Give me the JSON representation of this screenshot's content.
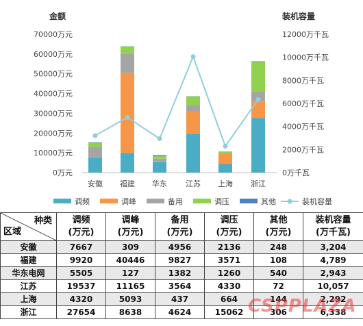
{
  "chart_data": {
    "type": "bar",
    "subtype": "stacked-bar-with-line",
    "left_axis_title": "金额",
    "right_axis_title": "装机容量",
    "left_ticks": [
      "0万元",
      "10000万元",
      "20000万元",
      "30000万元",
      "40000万元",
      "50000万元",
      "60000万元",
      "70000万元"
    ],
    "right_ticks": [
      "0万千瓦",
      "2000万千瓦",
      "4000万千瓦",
      "6000万千瓦",
      "8000万千瓦",
      "10000万千瓦",
      "12000万千瓦"
    ],
    "ylim_left": [
      0,
      70000
    ],
    "ylim_right": [
      0,
      12000
    ],
    "categories": [
      "安徽",
      "福建",
      "华东",
      "江苏",
      "上海",
      "浙江"
    ],
    "series": [
      {
        "name": "调频",
        "color": "#4bacc6",
        "values": [
          7667,
          9920,
          5505,
          19537,
          4320,
          27654
        ]
      },
      {
        "name": "调峰",
        "color": "#f79646",
        "values": [
          309,
          40446,
          127,
          11165,
          5093,
          8638
        ]
      },
      {
        "name": "备用",
        "color": "#a5a5a5",
        "values": [
          4956,
          9827,
          1382,
          3564,
          437,
          4624
        ]
      },
      {
        "name": "调压",
        "color": "#92d050",
        "values": [
          2136,
          3571,
          1260,
          4330,
          664,
          15062
        ]
      },
      {
        "name": "其他",
        "color": "#4f81bd",
        "values": [
          248,
          108,
          540,
          72,
          144,
          306
        ]
      }
    ],
    "line": {
      "name": "装机容量",
      "color": "#92cddc",
      "values": [
        3204,
        4789,
        2943,
        10057,
        2292,
        6338
      ]
    },
    "legend_position": "bottom",
    "grid": false
  },
  "table": {
    "corner_top": "种类",
    "corner_bottom": "区域",
    "headers": [
      {
        "line1": "调频",
        "line2": "(万元)"
      },
      {
        "line1": "调峰",
        "line2": "(万元)"
      },
      {
        "line1": "备用",
        "line2": "(万元)"
      },
      {
        "line1": "调压",
        "line2": "(万元)"
      },
      {
        "line1": "其他",
        "line2": "(万元)"
      },
      {
        "line1": "装机容量",
        "line2": "(万千瓦)"
      }
    ],
    "rows": [
      {
        "region": "安徽",
        "cells": [
          "7667",
          "309",
          "4956",
          "2136",
          "248",
          "3,204"
        ]
      },
      {
        "region": "福建",
        "cells": [
          "9920",
          "40446",
          "9827",
          "3571",
          "108",
          "4,789"
        ]
      },
      {
        "region": "华东电网",
        "cells": [
          "5505",
          "127",
          "1382",
          "1260",
          "540",
          "2,943"
        ]
      },
      {
        "region": "江苏",
        "cells": [
          "19537",
          "11165",
          "3564",
          "4330",
          "72",
          "10,057"
        ]
      },
      {
        "region": "上海",
        "cells": [
          "4320",
          "5093",
          "437",
          "664",
          "144",
          "2,292"
        ]
      },
      {
        "region": "浙江",
        "cells": [
          "27654",
          "8638",
          "4624",
          "15062",
          "306",
          "6,338"
        ]
      }
    ]
  },
  "watermark": "CSPPLAZA"
}
